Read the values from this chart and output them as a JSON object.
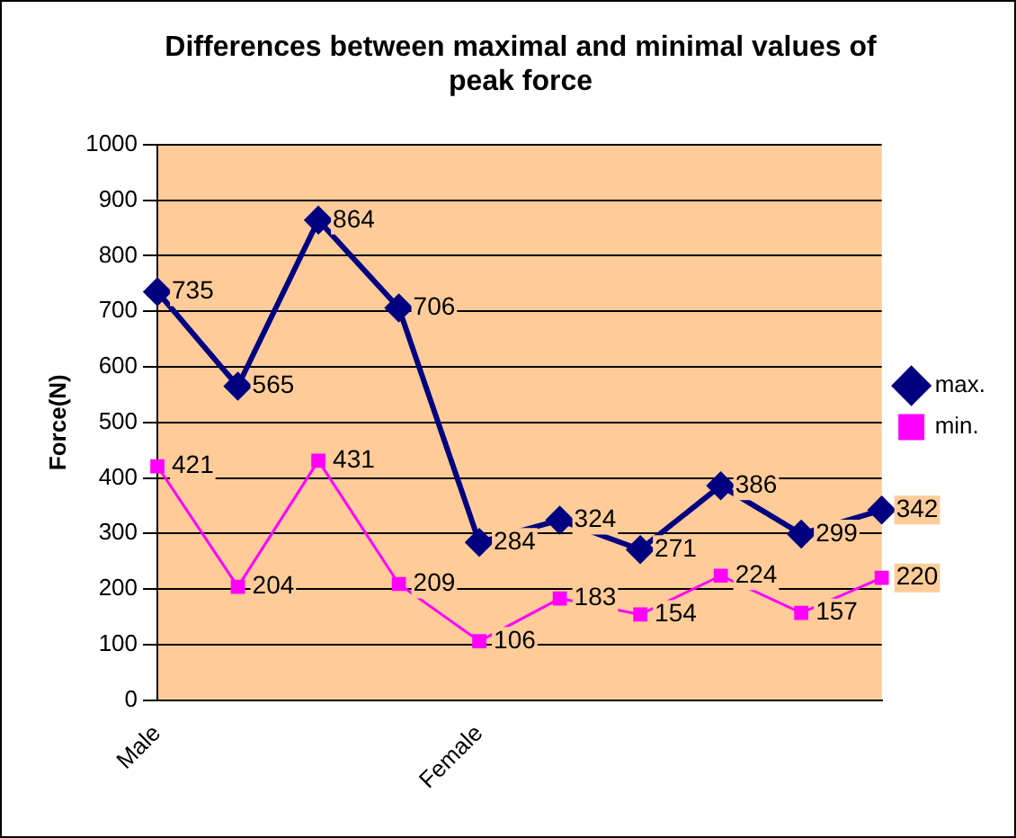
{
  "chart_data": {
    "type": "line",
    "title": "Differences between maximal and minimal values of peak force",
    "ylabel": "Force(N)",
    "categories": [
      "Male",
      null,
      null,
      null,
      "Female",
      null,
      null,
      null,
      null,
      null
    ],
    "series": [
      {
        "name": "max.",
        "color": "#000080",
        "marker": "diamond",
        "values": [
          735,
          565,
          864,
          706,
          284,
          324,
          271,
          386,
          299,
          342
        ]
      },
      {
        "name": "min.",
        "color": "#ff00ff",
        "marker": "square",
        "values": [
          421,
          204,
          431,
          209,
          106,
          183,
          154,
          224,
          157,
          220
        ]
      }
    ],
    "ylim": [
      0,
      1000
    ],
    "yticks": [
      0,
      100,
      200,
      300,
      400,
      500,
      600,
      700,
      800,
      900,
      1000
    ],
    "grid": "y",
    "legend": "right",
    "data_labels": true
  }
}
